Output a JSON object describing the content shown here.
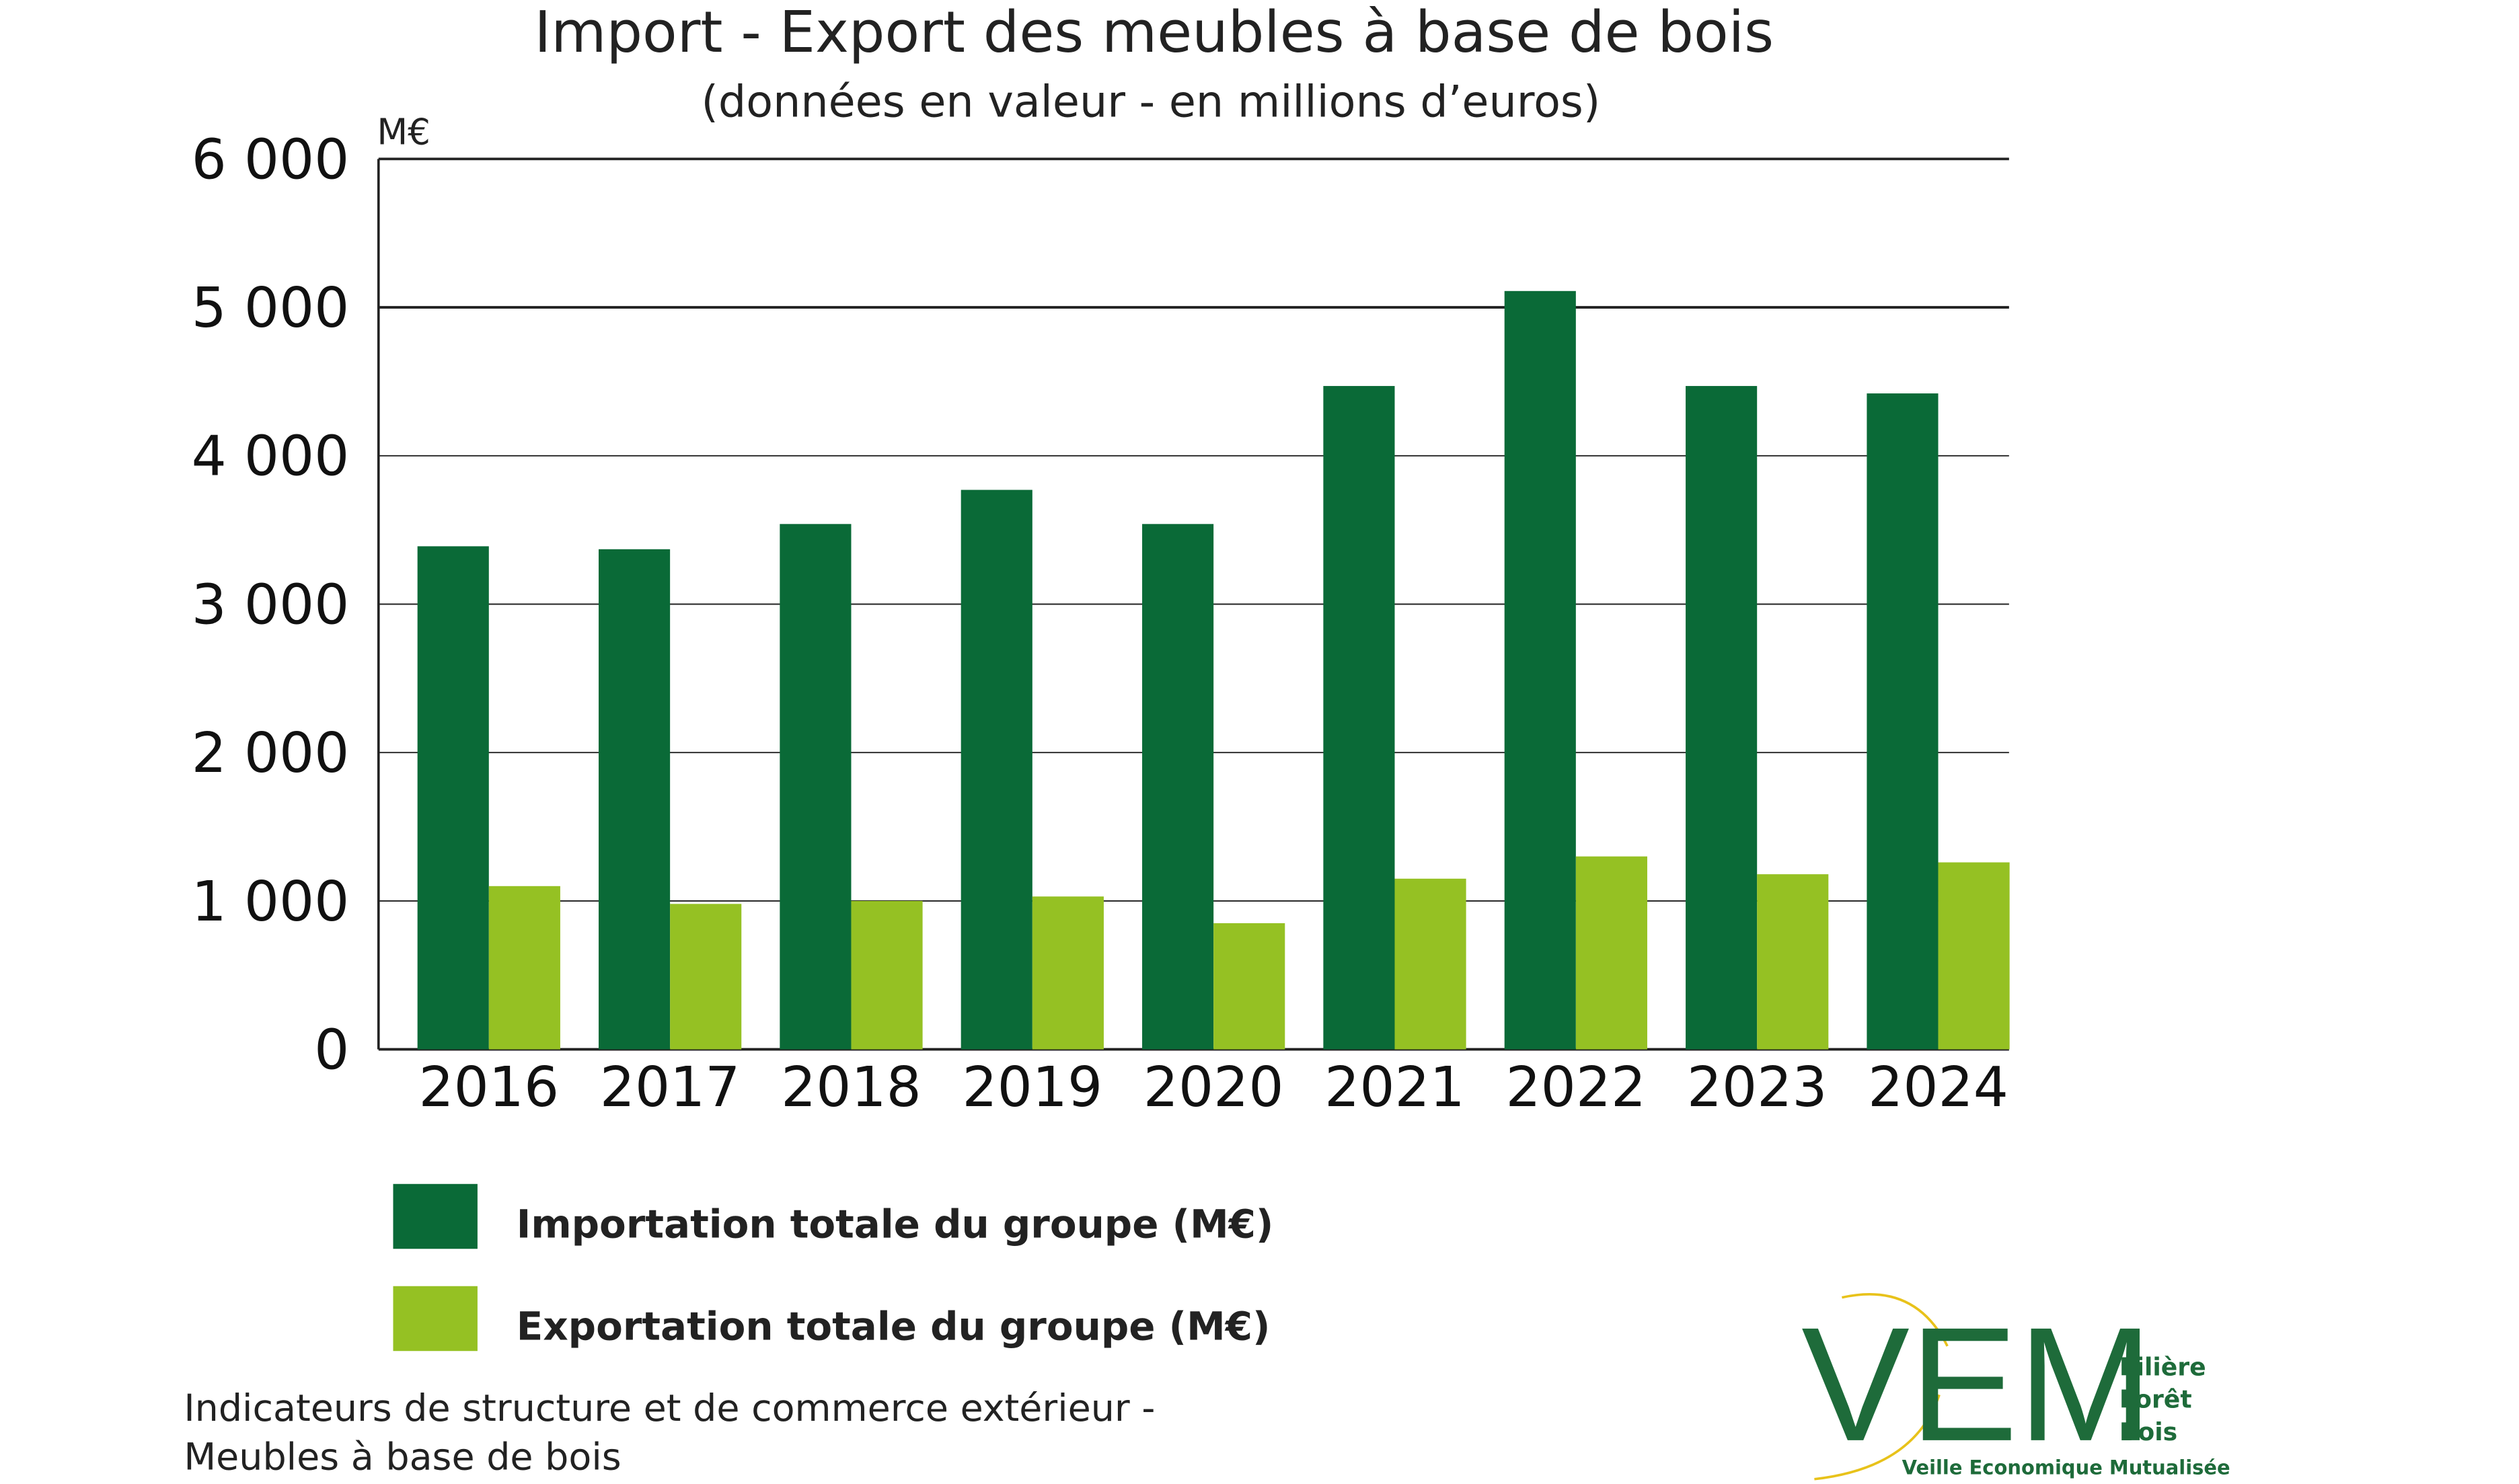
{
  "chart_data": {
    "type": "bar",
    "title": "Import - Export des meubles à base de bois",
    "subtitle": "(données en valeur - en millions d’euros)",
    "y_unit": "M€",
    "categories": [
      "2016",
      "2017",
      "2018",
      "2019",
      "2020",
      "2021",
      "2022",
      "2023",
      "2024"
    ],
    "series": [
      {
        "name": "Importation totale du groupe (M€)",
        "color": "#0a6a37",
        "values": [
          3390,
          3370,
          3540,
          3770,
          3540,
          4470,
          5110,
          4470,
          4420
        ]
      },
      {
        "name": "Exportation totale du groupe (M€)",
        "color": "#95c123",
        "values": [
          1100,
          980,
          1000,
          1030,
          850,
          1150,
          1300,
          1180,
          1260
        ]
      }
    ],
    "ylim": [
      0,
      6000
    ],
    "yticks": [
      0,
      {
        "value": 1000,
        "label": "1 000"
      },
      {
        "value": 2000,
        "label": "2 000"
      },
      {
        "value": 3000,
        "label": "3 000"
      },
      {
        "value": 4000,
        "label": "4 000"
      },
      {
        "value": 5000,
        "label": "5 000"
      },
      {
        "value": 6000,
        "label": "6 000"
      }
    ],
    "grid": true,
    "legend": "bottom-left"
  },
  "footer": {
    "lines": [
      "Indicateurs de structure et de commerce extérieur -",
      "Meubles à base de bois"
    ]
  },
  "logo": {
    "letters": "VEM",
    "side": [
      "Filière",
      "Forêt",
      "Bois"
    ],
    "caption": "Veille Economique Mutualisée"
  }
}
